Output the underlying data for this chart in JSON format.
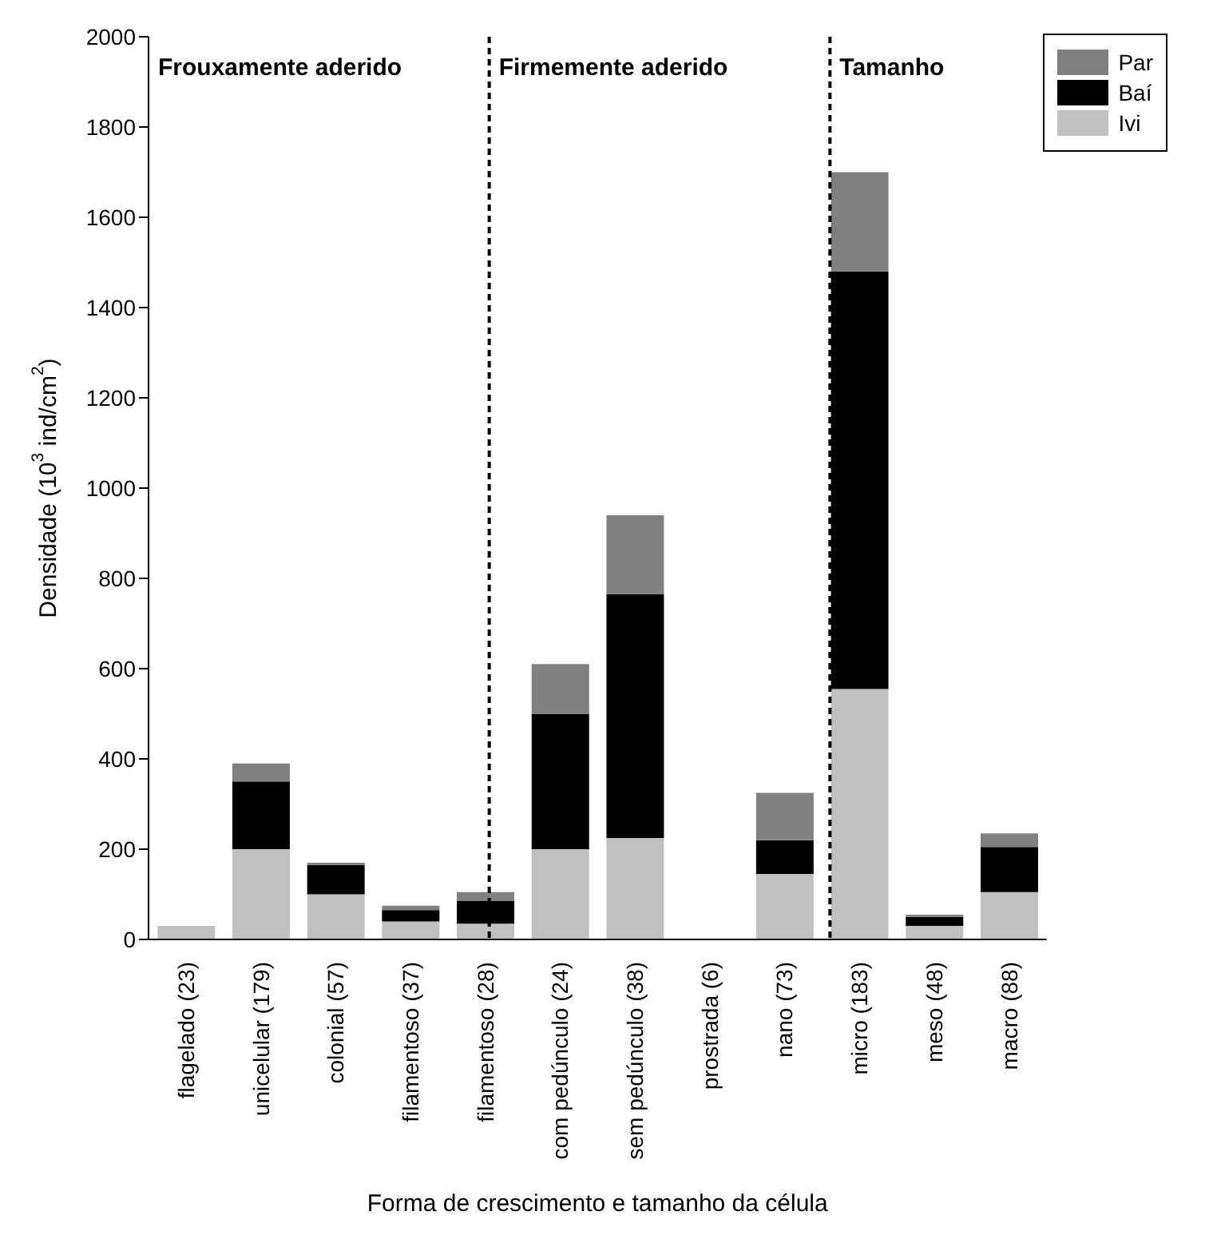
{
  "chart_data": {
    "type": "bar",
    "stacked": true,
    "xlabel": "Forma de crescimento e tamanho da célula",
    "ylabel": "Densidade (10$^{3}$ ind/cm$^{2}$)",
    "categories": [
      "flagelado (23)",
      "unicelular (179)",
      "colonial (57)",
      "filamentoso (37)",
      "filamentoso (28)",
      "com pedúnculo (24)",
      "sem pedúnculo (38)",
      "prostrada (6)",
      "nano (73)",
      "micro (183)",
      "meso (48)",
      "macro (88)"
    ],
    "series": [
      {
        "name": "Ivi",
        "color": "#c0c0c0",
        "values": [
          30,
          200,
          100,
          40,
          35,
          200,
          225,
          0,
          145,
          555,
          30,
          105
        ]
      },
      {
        "name": "Baí",
        "color": "#000000",
        "values": [
          0,
          150,
          65,
          25,
          50,
          300,
          540,
          0,
          75,
          925,
          20,
          100
        ]
      },
      {
        "name": "Par",
        "color": "#808080",
        "values": [
          0,
          40,
          5,
          10,
          20,
          110,
          175,
          0,
          105,
          220,
          5,
          30
        ]
      }
    ],
    "ylim": [
      0,
      2000
    ],
    "yticks": [
      0,
      200,
      400,
      600,
      800,
      1000,
      1200,
      1400,
      1600,
      1800,
      2000
    ],
    "annotations": [
      "Frouxamente aderido",
      "Firmemente aderido",
      "Tamanho"
    ],
    "legend": "top right"
  }
}
